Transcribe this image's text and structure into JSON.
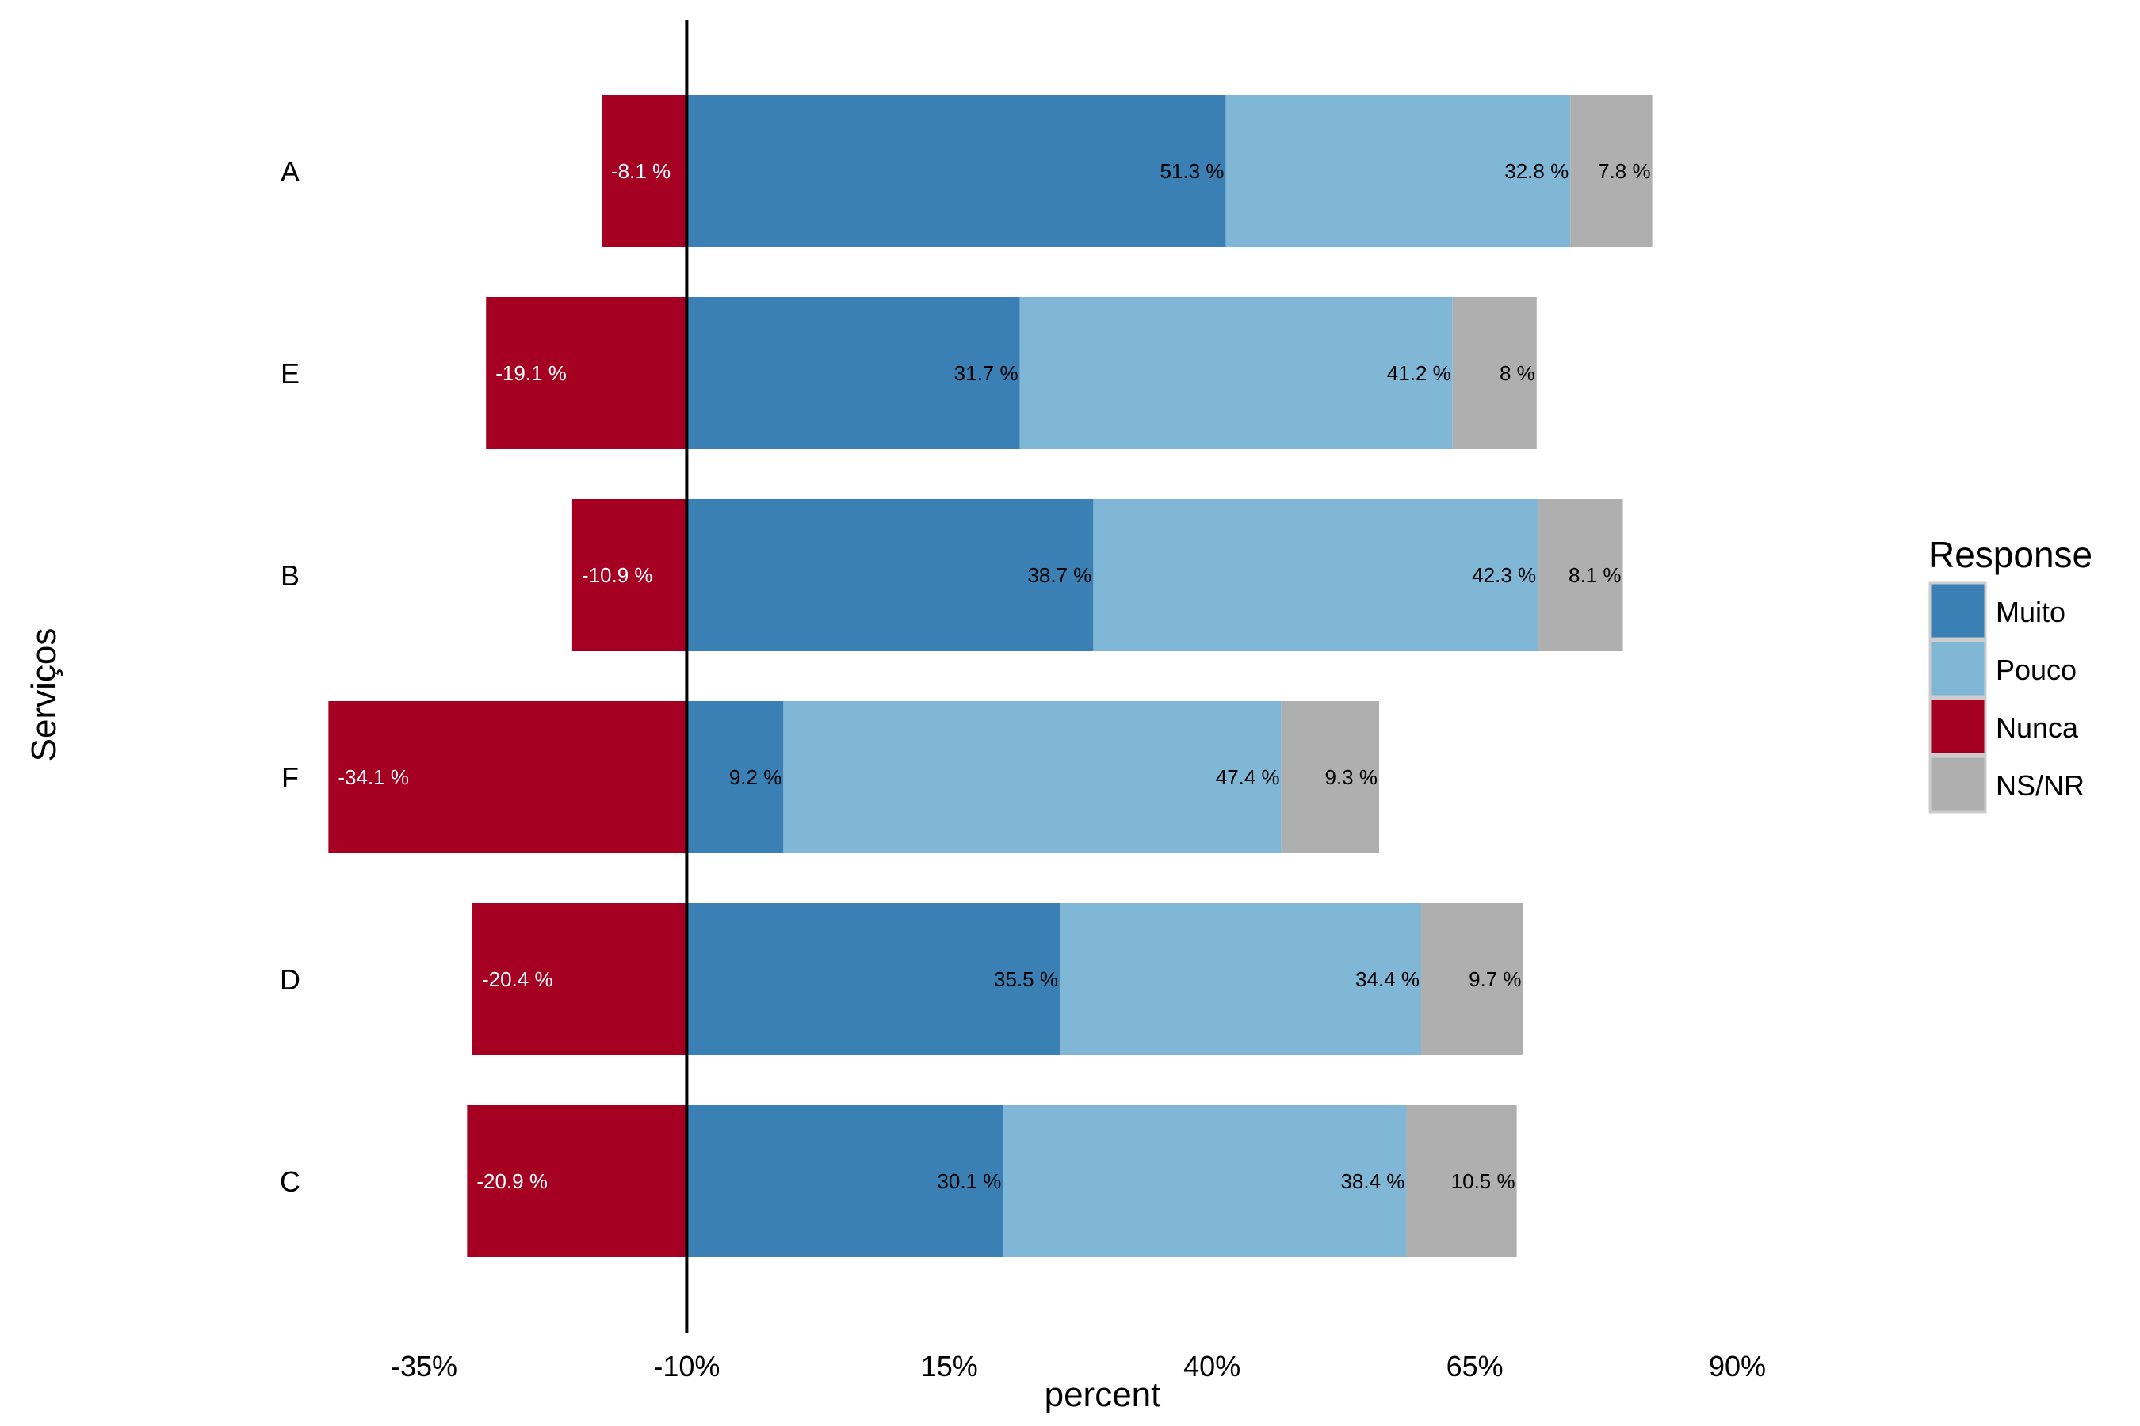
{
  "chart_data": {
    "type": "bar",
    "orientation": "horizontal",
    "stacking": "diverging",
    "xlabel": "percent",
    "ylabel": "Serviços",
    "xlim": [
      -45,
      95
    ],
    "xticks": [
      -35,
      -10,
      15,
      40,
      65,
      90
    ],
    "xtick_labels": [
      "-35%",
      "-10%",
      "15%",
      "40%",
      "65%",
      "90%"
    ],
    "zero_line_value": -10,
    "categories": [
      "A",
      "E",
      "B",
      "F",
      "D",
      "C"
    ],
    "series": [
      {
        "name": "Nunca",
        "color": "#a50021",
        "label_color": "#ffffff",
        "side": "negative",
        "values": [
          8.1,
          19.1,
          10.9,
          34.1,
          20.4,
          20.9
        ],
        "labels": [
          "-8.1 %",
          "-19.1 %",
          "-10.9 %",
          "-34.1 %",
          "-20.4 %",
          "-20.9 %"
        ]
      },
      {
        "name": "Muito",
        "color": "#3a80b5",
        "label_color": "#000000",
        "side": "positive",
        "values": [
          51.3,
          31.7,
          38.7,
          9.2,
          35.5,
          30.1
        ],
        "labels": [
          "51.3 %",
          "31.7 %",
          "38.7 %",
          "9.2 %",
          "35.5 %",
          "30.1 %"
        ]
      },
      {
        "name": "Pouco",
        "color": "#81b7d6",
        "label_color": "#000000",
        "side": "positive",
        "values": [
          32.8,
          41.2,
          42.3,
          47.4,
          34.4,
          38.4
        ],
        "labels": [
          "32.8 %",
          "41.2 %",
          "42.3 %",
          "47.4 %",
          "34.4 %",
          "38.4 %"
        ]
      },
      {
        "name": "NS/NR",
        "color": "#afafaf",
        "label_color": "#000000",
        "side": "positive",
        "values": [
          7.8,
          8.0,
          8.1,
          9.3,
          9.7,
          10.5
        ],
        "labels": [
          "7.8 %",
          "8 %",
          "8.1 %",
          "9.3 %",
          "9.7 %",
          "10.5 %"
        ]
      }
    ],
    "legend": {
      "title": "Response",
      "position": "right",
      "entries": [
        {
          "name": "Muito",
          "color": "#3a80b5"
        },
        {
          "name": "Pouco",
          "color": "#81b7d6"
        },
        {
          "name": "Nunca",
          "color": "#a50021"
        },
        {
          "name": "NS/NR",
          "color": "#afafaf"
        }
      ]
    },
    "grid": false
  }
}
